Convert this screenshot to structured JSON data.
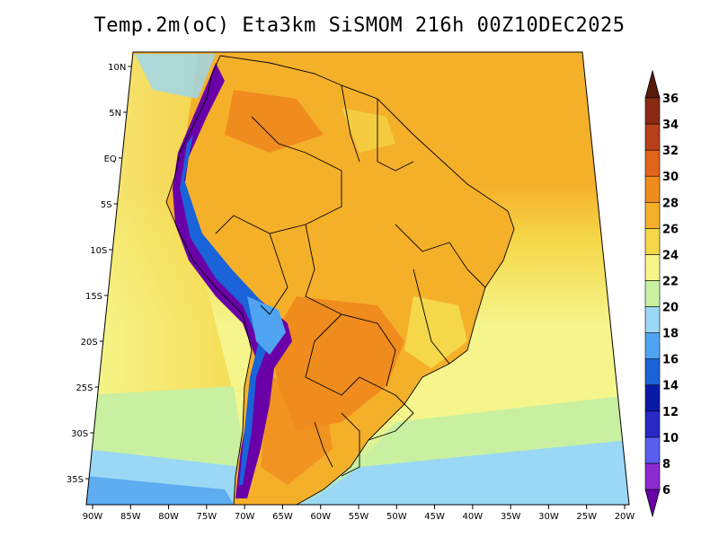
{
  "title": "Temp.2m(oC) Eta3km SiSMOM 216h 00Z10DEC2025",
  "lat_labels": [
    "10N",
    "5N",
    "EQ",
    "5S",
    "10S",
    "15S",
    "20S",
    "25S",
    "30S",
    "35S"
  ],
  "lon_labels": [
    "90W",
    "85W",
    "80W",
    "75W",
    "70W",
    "65W",
    "60W",
    "55W",
    "50W",
    "45W",
    "40W",
    "35W",
    "30W",
    "25W",
    "20W"
  ],
  "colorbar": {
    "labels": [
      "6",
      "8",
      "10",
      "12",
      "14",
      "16",
      "18",
      "20",
      "22",
      "24",
      "26",
      "28",
      "30",
      "32",
      "34",
      "36"
    ],
    "colors": [
      "#6a00a8",
      "#8c2bd0",
      "#5a5ef0",
      "#2929c8",
      "#0a1aa8",
      "#1a63d8",
      "#4fa3f0",
      "#9ad8f5",
      "#c8f0a0",
      "#f5f58c",
      "#f5d84a",
      "#f5b02a",
      "#f08c1e",
      "#e0641a",
      "#b8401a",
      "#8a2a14",
      "#5a1a0a"
    ]
  },
  "field": {
    "ocean_north": "#f5b02a",
    "ocean_mid": "#f5d84a",
    "ocean_south": "#f5f58c",
    "ocean_far_south": "#c8f0a0",
    "ocean_cold": "#9ad8f5",
    "land_main": "#f5b02a",
    "land_hot": "#f08c1e",
    "andes_cold": "#6a00a8",
    "andes_mid": "#1a63d8"
  }
}
